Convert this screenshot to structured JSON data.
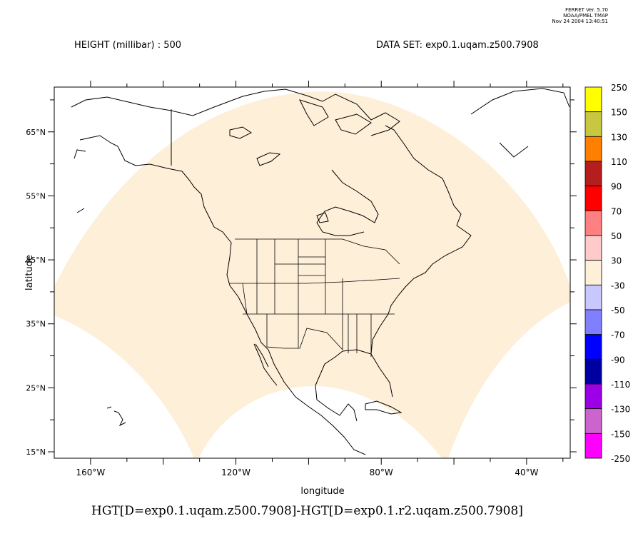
{
  "stamp": {
    "line1": "FERRET Ver. 5.70",
    "line2": "NOAA/PMEL TMAP",
    "line3": "Nov 24 2004 13:40:51"
  },
  "header": {
    "left": "HEIGHT (millibar) : 500",
    "right": "DATA SET: exp0.1.uqam.z500.7908"
  },
  "caption": "HGT[D=exp0.1.uqam.z500.7908]-HGT[D=exp0.1.r2.uqam.z500.7908]",
  "chart_data": {
    "type": "heatmap",
    "title": "",
    "xlabel": "longitude",
    "ylabel": "latitude",
    "xlim": [
      -170,
      -28
    ],
    "ylim": [
      14,
      72
    ],
    "x_ticks": [
      "160°W",
      "120°W",
      "80°W",
      "40°W"
    ],
    "x_tick_values": [
      -160,
      -120,
      -80,
      -40
    ],
    "y_ticks": [
      "15°N",
      "25°N",
      "35°N",
      "45°N",
      "55°N",
      "65°N"
    ],
    "y_tick_values": [
      15,
      25,
      35,
      45,
      55,
      65
    ],
    "field": {
      "description": "whole model domain has difference between -30 and 30",
      "value_class": "-30 to 30",
      "color": "#fdefd8"
    },
    "colorbar": {
      "labels": [
        "250",
        "150",
        "130",
        "110",
        "90",
        "70",
        "50",
        "30",
        "-30",
        "-50",
        "-70",
        "-90",
        "-110",
        "-130",
        "-150",
        "-250"
      ],
      "colors": [
        "#ffff00",
        "#c8c840",
        "#ff8000",
        "#b41e1e",
        "#ff0000",
        "#ff8080",
        "#ffcaca",
        "#fdefd8",
        "#c8c8ff",
        "#8080ff",
        "#0000ff",
        "#0000a0",
        "#9b00e6",
        "#cd64cd",
        "#ff00ff"
      ]
    }
  }
}
